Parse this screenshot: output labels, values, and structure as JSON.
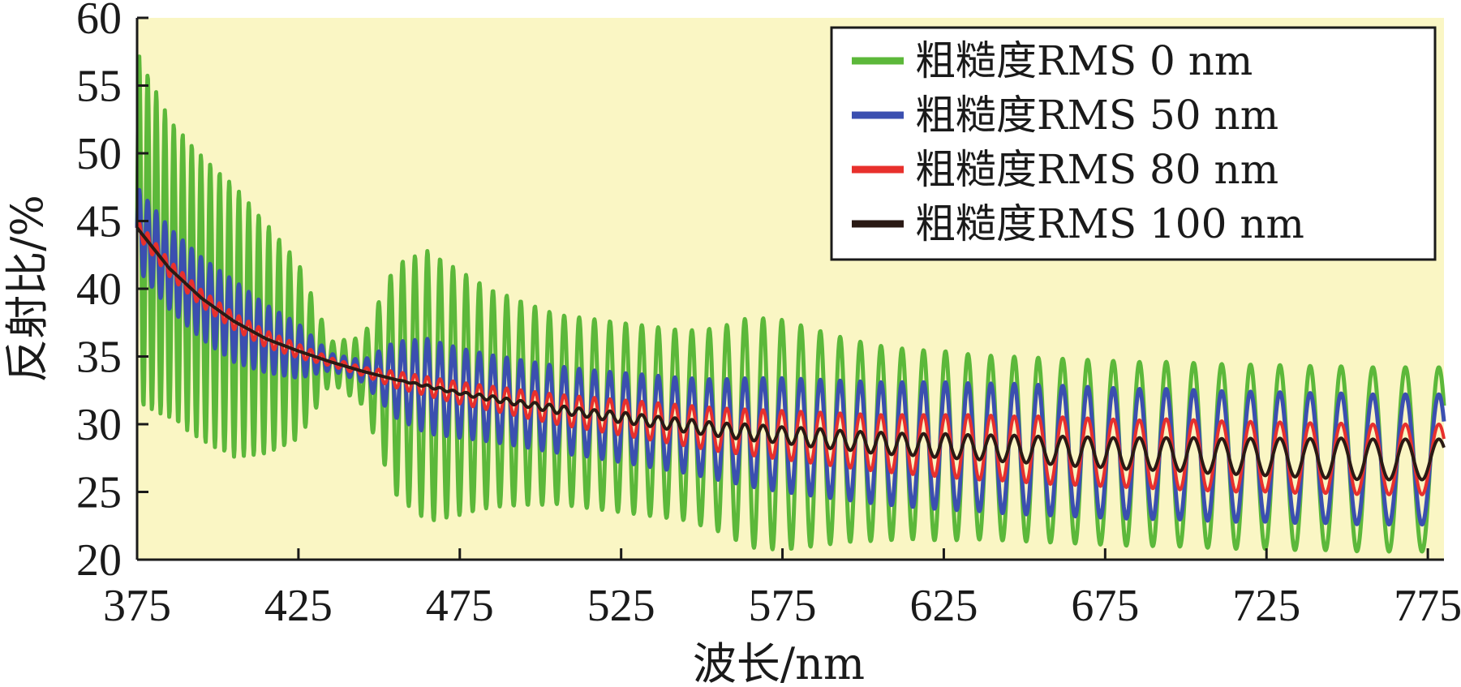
{
  "chart_data": {
    "type": "line",
    "title": "",
    "xlabel": "波长/nm",
    "ylabel": "反射比/%",
    "xlim": [
      375,
      780
    ],
    "ylim": [
      20,
      60
    ],
    "xticks": [
      375,
      425,
      475,
      525,
      575,
      625,
      675,
      725,
      775
    ],
    "xtick_labels": [
      "375",
      "425",
      "475",
      "525",
      "575",
      "625",
      "675",
      "725",
      "775"
    ],
    "yticks": [
      20,
      25,
      30,
      35,
      40,
      45,
      50,
      55,
      60
    ],
    "ytick_labels": [
      "20",
      "25",
      "30",
      "35",
      "40",
      "45",
      "50",
      "55",
      "60"
    ],
    "grid": false,
    "legend_position": "top-right",
    "plot_background": "#faf6c4",
    "series": [
      {
        "name": "粗糙度RMS 0 nm",
        "color": "#5cb83a",
        "x": [
          375,
          385,
          395,
          405,
          415,
          425,
          435,
          445,
          455,
          465,
          475,
          485,
          495,
          505,
          515,
          525,
          535,
          545,
          555,
          565,
          575,
          585,
          595,
          605,
          615,
          625,
          635,
          645,
          655,
          665,
          675,
          685,
          695,
          705,
          715,
          725,
          735,
          745,
          755,
          765,
          775,
          780
        ],
        "mean": [
          44.5,
          41.5,
          39.3,
          37.6,
          36.3,
          35.4,
          34.6,
          33.9,
          33.3,
          32.8,
          32.3,
          31.9,
          31.5,
          31.1,
          30.8,
          30.5,
          30.2,
          29.9,
          29.6,
          29.4,
          29.2,
          29.0,
          28.8,
          28.6,
          28.5,
          28.4,
          28.3,
          28.2,
          28.1,
          28.0,
          27.9,
          27.8,
          27.8,
          27.7,
          27.6,
          27.6,
          27.5,
          27.5,
          27.4,
          27.4,
          27.4,
          27.4
        ],
        "amplitude": [
          13.0,
          11.0,
          10.5,
          10.0,
          8.5,
          6.5,
          1.5,
          2.5,
          8.5,
          10.0,
          9.0,
          8.0,
          7.5,
          7.0,
          7.0,
          7.0,
          7.0,
          7.0,
          7.5,
          8.5,
          8.5,
          8.0,
          7.5,
          7.2,
          7.0,
          7.0,
          6.8,
          6.8,
          6.8,
          6.8,
          6.8,
          6.8,
          6.8,
          6.8,
          6.8,
          6.8,
          6.8,
          6.8,
          6.8,
          6.8,
          6.8,
          6.8
        ]
      },
      {
        "name": "粗糙度RMS 50 nm",
        "color": "#3b4fb0",
        "x": [
          375,
          385,
          395,
          405,
          415,
          425,
          435,
          445,
          455,
          465,
          475,
          485,
          495,
          505,
          515,
          525,
          535,
          545,
          555,
          565,
          575,
          585,
          595,
          605,
          615,
          625,
          635,
          645,
          655,
          665,
          675,
          685,
          695,
          705,
          715,
          725,
          735,
          745,
          755,
          765,
          775,
          780
        ],
        "mean": [
          44.5,
          41.5,
          39.3,
          37.6,
          36.3,
          35.4,
          34.6,
          33.9,
          33.3,
          32.8,
          32.3,
          31.9,
          31.5,
          31.1,
          30.8,
          30.5,
          30.2,
          29.9,
          29.6,
          29.4,
          29.2,
          29.0,
          28.8,
          28.6,
          28.5,
          28.4,
          28.3,
          28.2,
          28.1,
          28.0,
          27.9,
          27.8,
          27.8,
          27.7,
          27.6,
          27.6,
          27.5,
          27.5,
          27.4,
          27.4,
          27.4,
          27.4
        ],
        "amplitude": [
          3.0,
          3.0,
          3.0,
          3.0,
          2.5,
          2.0,
          0.6,
          0.8,
          2.8,
          3.5,
          3.3,
          3.2,
          3.2,
          3.2,
          3.2,
          3.3,
          3.4,
          3.5,
          3.7,
          4.0,
          4.2,
          4.3,
          4.4,
          4.5,
          4.6,
          4.7,
          4.7,
          4.8,
          4.8,
          4.8,
          4.8,
          4.8,
          4.8,
          4.8,
          4.8,
          4.8,
          4.8,
          4.8,
          4.8,
          4.8,
          4.8,
          4.8
        ]
      },
      {
        "name": "粗糙度RMS 80 nm",
        "color": "#e8302c",
        "x": [
          375,
          385,
          395,
          405,
          415,
          425,
          435,
          445,
          455,
          465,
          475,
          485,
          495,
          505,
          515,
          525,
          535,
          545,
          555,
          565,
          575,
          585,
          595,
          605,
          615,
          625,
          635,
          645,
          655,
          665,
          675,
          685,
          695,
          705,
          715,
          725,
          735,
          745,
          755,
          765,
          775,
          780
        ],
        "mean": [
          44.5,
          41.5,
          39.3,
          37.6,
          36.3,
          35.4,
          34.6,
          33.9,
          33.3,
          32.8,
          32.3,
          31.9,
          31.5,
          31.1,
          30.8,
          30.5,
          30.2,
          29.9,
          29.6,
          29.4,
          29.2,
          29.0,
          28.8,
          28.6,
          28.5,
          28.4,
          28.3,
          28.2,
          28.1,
          28.0,
          27.9,
          27.8,
          27.8,
          27.7,
          27.6,
          27.6,
          27.5,
          27.5,
          27.4,
          27.4,
          27.4,
          27.4
        ],
        "amplitude": [
          0.6,
          0.6,
          0.6,
          0.6,
          0.6,
          0.5,
          0.3,
          0.3,
          0.6,
          0.7,
          0.8,
          0.9,
          1.0,
          1.1,
          1.2,
          1.3,
          1.4,
          1.5,
          1.6,
          1.7,
          1.8,
          1.9,
          2.0,
          2.1,
          2.2,
          2.3,
          2.4,
          2.4,
          2.5,
          2.5,
          2.5,
          2.5,
          2.6,
          2.6,
          2.6,
          2.6,
          2.6,
          2.6,
          2.6,
          2.6,
          2.6,
          2.6
        ]
      },
      {
        "name": "粗糙度RMS 100 nm",
        "color": "#2a1a14",
        "x": [
          375,
          385,
          395,
          405,
          415,
          425,
          435,
          445,
          455,
          465,
          475,
          485,
          495,
          505,
          515,
          525,
          535,
          545,
          555,
          565,
          575,
          585,
          595,
          605,
          615,
          625,
          635,
          645,
          655,
          665,
          675,
          685,
          695,
          705,
          715,
          725,
          735,
          745,
          755,
          765,
          775,
          780
        ],
        "mean": [
          44.5,
          41.5,
          39.3,
          37.6,
          36.3,
          35.4,
          34.6,
          33.9,
          33.3,
          32.8,
          32.3,
          31.9,
          31.5,
          31.1,
          30.8,
          30.5,
          30.2,
          29.9,
          29.6,
          29.4,
          29.2,
          29.0,
          28.8,
          28.6,
          28.5,
          28.4,
          28.3,
          28.2,
          28.1,
          28.0,
          27.9,
          27.8,
          27.8,
          27.7,
          27.6,
          27.6,
          27.5,
          27.5,
          27.4,
          27.4,
          27.4,
          27.4
        ],
        "amplitude": [
          0.0,
          0.0,
          0.0,
          0.0,
          0.0,
          0.0,
          0.0,
          0.0,
          0.0,
          0.1,
          0.1,
          0.2,
          0.2,
          0.3,
          0.3,
          0.4,
          0.4,
          0.5,
          0.5,
          0.6,
          0.6,
          0.7,
          0.7,
          0.8,
          0.8,
          0.9,
          0.9,
          1.0,
          1.0,
          1.1,
          1.1,
          1.2,
          1.2,
          1.3,
          1.3,
          1.4,
          1.4,
          1.5,
          1.5,
          1.5,
          1.5,
          1.5
        ]
      }
    ]
  }
}
